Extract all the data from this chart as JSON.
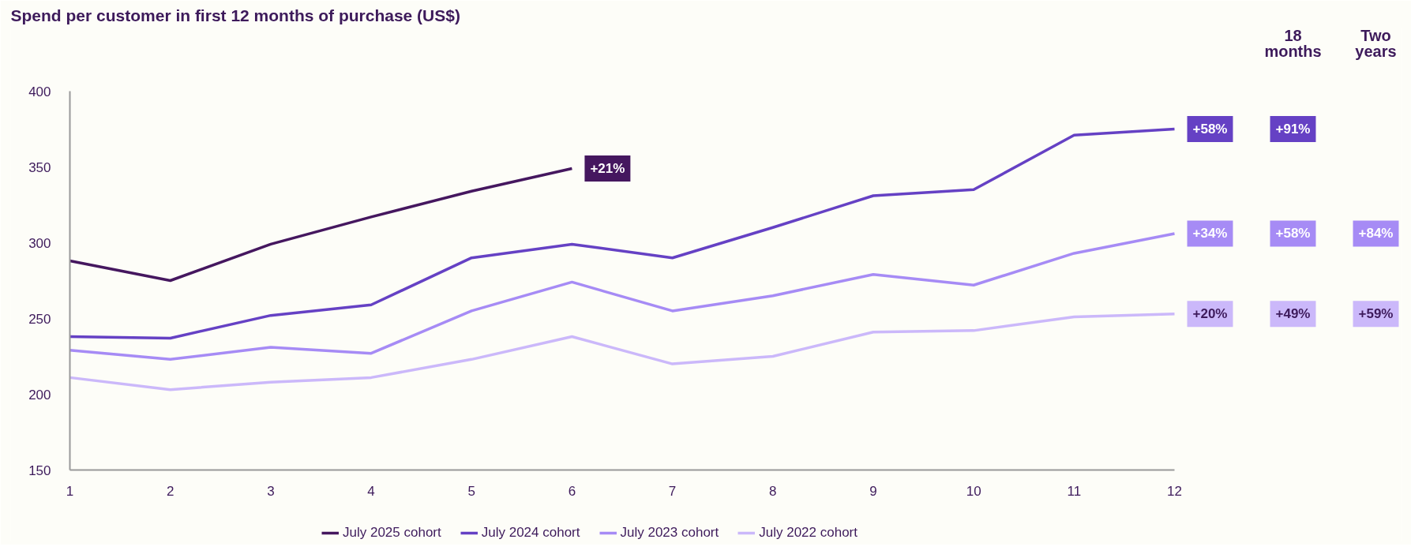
{
  "chart_data": {
    "type": "line",
    "title": "Spend per customer in first 12 months of purchase (US$)",
    "x": [
      1,
      2,
      3,
      4,
      5,
      6,
      7,
      8,
      9,
      10,
      11,
      12
    ],
    "series": [
      {
        "name": "July 2025 cohort",
        "color": "#45175f",
        "values": [
          288,
          275,
          299,
          317,
          334,
          349,
          null,
          null,
          null,
          null,
          null,
          null
        ]
      },
      {
        "name": "July 2024 cohort",
        "color": "#6541c4",
        "values": [
          238,
          237,
          252,
          259,
          290,
          299,
          290,
          310,
          331,
          335,
          371,
          375
        ]
      },
      {
        "name": "July 2023 cohort",
        "color": "#a68bf5",
        "values": [
          229,
          223,
          231,
          227,
          255,
          274,
          255,
          265,
          279,
          272,
          293,
          306
        ]
      },
      {
        "name": "July 2022 cohort",
        "color": "#cbb8fa",
        "values": [
          211,
          203,
          208,
          211,
          223,
          238,
          220,
          225,
          241,
          242,
          251,
          253
        ]
      }
    ],
    "xlim": [
      1,
      12
    ],
    "ylim": [
      150,
      400
    ],
    "xticks": [
      1,
      2,
      3,
      4,
      5,
      6,
      7,
      8,
      9,
      10,
      11,
      12
    ],
    "yticks": [
      150,
      200,
      250,
      300,
      350,
      400
    ],
    "grid": false,
    "legend": "bottom",
    "line_style": "solid",
    "annotations": [
      "+21%",
      "+58%",
      "+34%",
      "+20%",
      "18 months",
      "Two years",
      "+91%",
      "+58%",
      "+49%",
      "+84%",
      "+59%"
    ]
  }
}
